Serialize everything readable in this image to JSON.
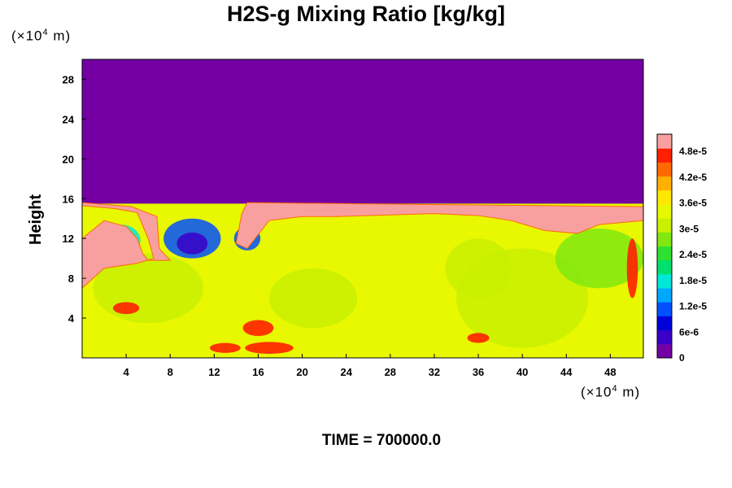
{
  "chart_data": {
    "type": "heatmap",
    "title": "H2S-g Mixing Ratio [kg/kg]",
    "ylabel": "Height",
    "xlabel": "",
    "x_unit": {
      "prefix": "(×10",
      "exp": "4",
      "suffix": " m)"
    },
    "y_unit": {
      "prefix": "(×10",
      "exp": "4",
      "suffix": " m)"
    },
    "xlim": [
      0,
      51
    ],
    "ylim": [
      0,
      30
    ],
    "x_ticks": [
      4,
      8,
      12,
      16,
      20,
      24,
      28,
      32,
      36,
      40,
      44,
      48
    ],
    "y_ticks": [
      4,
      8,
      12,
      16,
      20,
      24,
      28
    ],
    "colorbar": {
      "range": [
        0,
        5.2e-05
      ],
      "tick_values": [
        0,
        6e-06,
        1.2e-05,
        1.8e-05,
        2.4e-05,
        3e-05,
        3.6e-05,
        4.2e-05,
        4.8e-05
      ],
      "tick_labels": [
        "0",
        "6e-6",
        "1.2e-5",
        "1.8e-5",
        "2.4e-5",
        "3e-5",
        "3.6e-5",
        "4.2e-5",
        "4.8e-5"
      ],
      "colors": [
        "#7400a4",
        "#3a00c8",
        "#0000d8",
        "#0050ff",
        "#00a8ff",
        "#00e8d8",
        "#00e070",
        "#30e030",
        "#80e810",
        "#c8f000",
        "#e8f800",
        "#ffe800",
        "#ffb000",
        "#ff6a00",
        "#ff2000",
        "#f8a0a0"
      ]
    },
    "field": {
      "background_value": 0,
      "interface_height": 15.5,
      "bulk_value": 3.4e-05,
      "band_value": 5.2e-05
    },
    "time_label": "TIME = 700000.0"
  }
}
